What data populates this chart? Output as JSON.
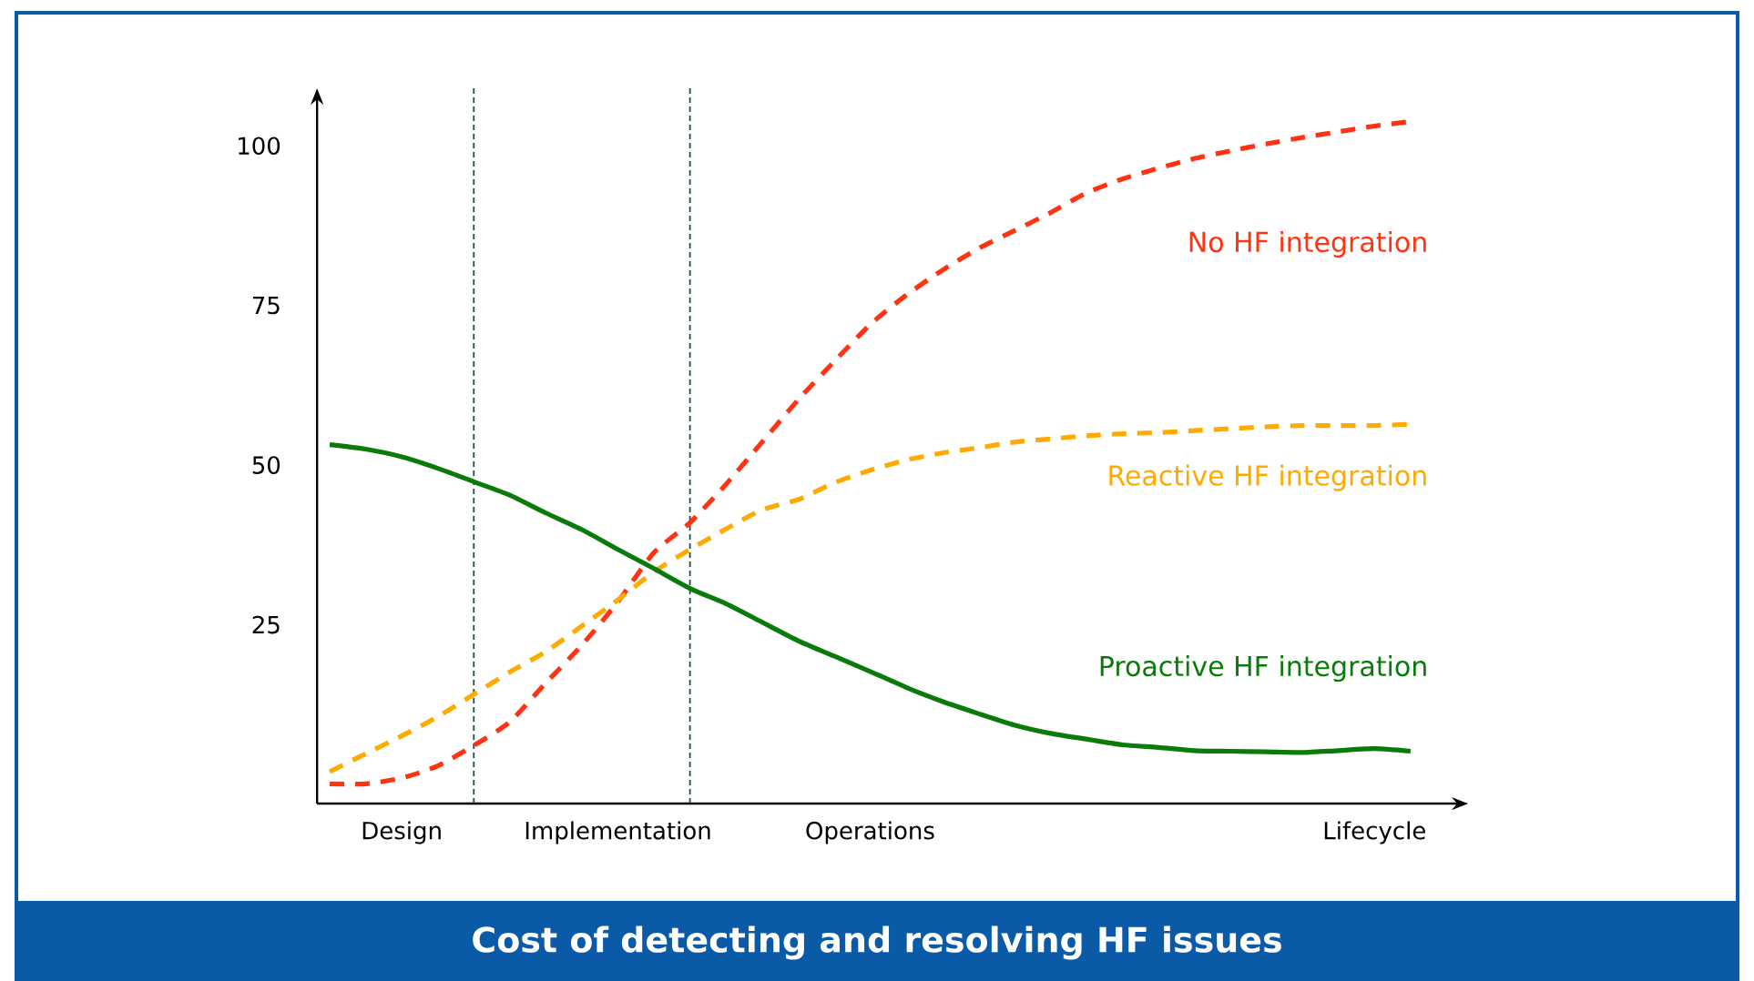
{
  "chart_data": {
    "type": "line",
    "title": "Cost of detecting and resolving HF issues",
    "categories": [
      null,
      null,
      "Design",
      null,
      null,
      null,
      null,
      null,
      "Implementation",
      null,
      null,
      null,
      null,
      null,
      null,
      "Operations",
      null,
      null,
      null,
      null,
      null,
      null,
      null,
      null,
      null,
      null,
      null,
      null,
      null,
      "Lifecycle",
      null
    ],
    "ylim": [
      -3,
      109
    ],
    "yticks": [
      25,
      50,
      75,
      100
    ],
    "series": [
      {
        "name": "No HF integration",
        "color": "#ff3311",
        "line_style": "dashed",
        "values": [
          0.1,
          0.1,
          1.0,
          2.9,
          6.1,
          9.8,
          15.9,
          21.8,
          28.6,
          36.3,
          41.0,
          47.0,
          53.6,
          60.2,
          66.2,
          72.0,
          76.6,
          80.5,
          83.9,
          86.7,
          89.5,
          92.6,
          94.8,
          96.5,
          98.0,
          99.2,
          100.3,
          101.3,
          102.2,
          103.1,
          103.8
        ]
      },
      {
        "name": "Reactive HF integration",
        "color": "#ffaa00",
        "line_style": "dashed",
        "values": [
          2.0,
          4.8,
          7.6,
          10.6,
          14.1,
          17.6,
          20.8,
          24.8,
          28.9,
          33.3,
          36.8,
          40.0,
          43.0,
          44.6,
          47.2,
          49.2,
          50.8,
          51.9,
          52.7,
          53.6,
          54.1,
          54.6,
          54.9,
          55.1,
          55.4,
          55.7,
          56.0,
          56.2,
          56.2,
          56.2,
          56.4
        ]
      },
      {
        "name": "Proactive HF integration",
        "color": "#0a7a0a",
        "line_style": "solid",
        "values": [
          53.2,
          52.5,
          51.3,
          49.5,
          47.4,
          45.3,
          42.5,
          39.9,
          36.8,
          33.8,
          30.7,
          28.3,
          25.4,
          22.5,
          20.1,
          17.7,
          15.2,
          13.0,
          11.1,
          9.3,
          8.0,
          7.1,
          6.2,
          5.8,
          5.3,
          5.2,
          5.1,
          5.0,
          5.3,
          5.6,
          5.2
        ]
      }
    ]
  }
}
